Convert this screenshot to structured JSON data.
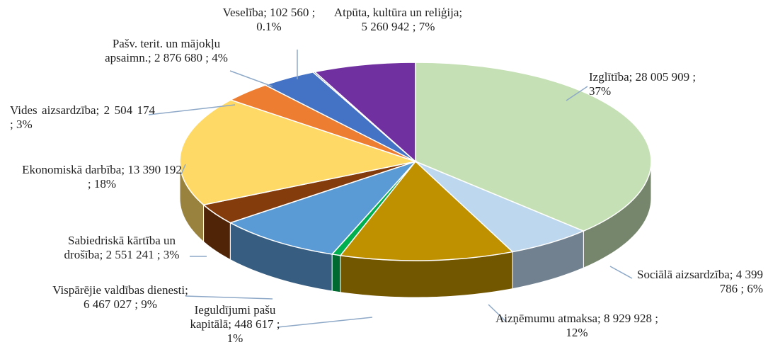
{
  "chart_data": {
    "type": "pie3d",
    "categories": [
      "Izglītība",
      "Sociālā aizsardzība",
      "Aizņēmumu atmaksa",
      "Ieguldījumi pašu kapitālā",
      "Vispārējie valdības dienesti",
      "Sabiedriskā kārtība un drošība",
      "Ekonomiskā darbība",
      "Vides aizsardzība",
      "Pašv. terit. un mājokļu apsaimn.",
      "Veselība",
      "Atpūta, kultūra un reliģija"
    ],
    "values": [
      28005909,
      4399786,
      8929928,
      448617,
      6467027,
      2551241,
      13390192,
      2504174,
      2876680,
      102560,
      5260942
    ],
    "value_labels": [
      "28 005 909",
      "4 399 786",
      "8 929 928",
      "448 617",
      "6 467 027",
      "2 551 241",
      "13 390 192",
      "2 504 174",
      "2 876 680",
      "102 560",
      "5 260 942"
    ],
    "percent_labels": [
      "37%",
      "6%",
      "12%",
      "1%",
      "9%",
      "3%",
      "18%",
      "3%",
      "4%",
      "0.1%",
      "7%"
    ],
    "separator": ";",
    "colors": [
      "#c5e0b4",
      "#bdd7ee",
      "#bf9000",
      "#00b050",
      "#5b9bd5",
      "#843c0c",
      "#ffd966",
      "#ed7d31",
      "#4472c4",
      "#2f5597",
      "#7030a0"
    ]
  }
}
